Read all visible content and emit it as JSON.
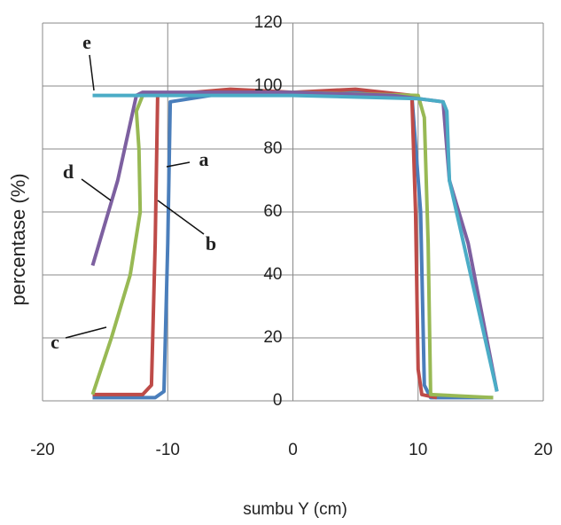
{
  "chart_data": {
    "type": "line",
    "xlabel": "sumbu Y (cm)",
    "ylabel": "percentase (%)",
    "xlim": [
      -20,
      20
    ],
    "xticks": [
      -20,
      -10,
      0,
      10,
      20
    ],
    "ylim": [
      0,
      120
    ],
    "yticks": [
      0,
      20,
      40,
      60,
      80,
      100,
      120
    ],
    "grid": true,
    "series": [
      {
        "name": "a",
        "color": "#4a7ebb",
        "x": [
          -16,
          -11,
          -10.3,
          -10,
          -9.8,
          -5,
          0,
          5,
          9.5,
          10.2,
          10.5,
          11,
          16
        ],
        "values": [
          1,
          1,
          3,
          50,
          95,
          98,
          98,
          98,
          97,
          60,
          5,
          1,
          1
        ]
      },
      {
        "name": "b",
        "color": "#be4b48",
        "x": [
          -16,
          -12,
          -11.3,
          -11,
          -10.8,
          -5,
          0,
          5,
          9.5,
          9.8,
          10,
          10.3,
          11.5
        ],
        "values": [
          2,
          2,
          5,
          50,
          97,
          99,
          98,
          99,
          97,
          60,
          10,
          2,
          1
        ]
      },
      {
        "name": "c",
        "color": "#98b954",
        "x": [
          -16,
          -14.5,
          -13,
          -12.2,
          -12.3,
          -12.5,
          -12,
          0,
          10,
          10.5,
          10.8,
          11,
          16
        ],
        "values": [
          2,
          20,
          40,
          60,
          80,
          92,
          97,
          98,
          97,
          90,
          50,
          2,
          1
        ]
      },
      {
        "name": "d",
        "color": "#7d60a0",
        "x": [
          -16,
          -14,
          -12.5,
          -12,
          0,
          8,
          12,
          12.5,
          14,
          16.3
        ],
        "values": [
          43,
          70,
          97,
          98,
          98,
          97,
          95,
          70,
          50,
          3
        ]
      },
      {
        "name": "e",
        "color": "#4bacc6",
        "x": [
          -16,
          -10,
          0,
          10,
          12,
          12.3,
          12.5,
          16.3
        ],
        "values": [
          97,
          97,
          97,
          96,
          95,
          92,
          70,
          3
        ]
      }
    ],
    "annotations": [
      "a",
      "b",
      "c",
      "d",
      "e"
    ]
  }
}
